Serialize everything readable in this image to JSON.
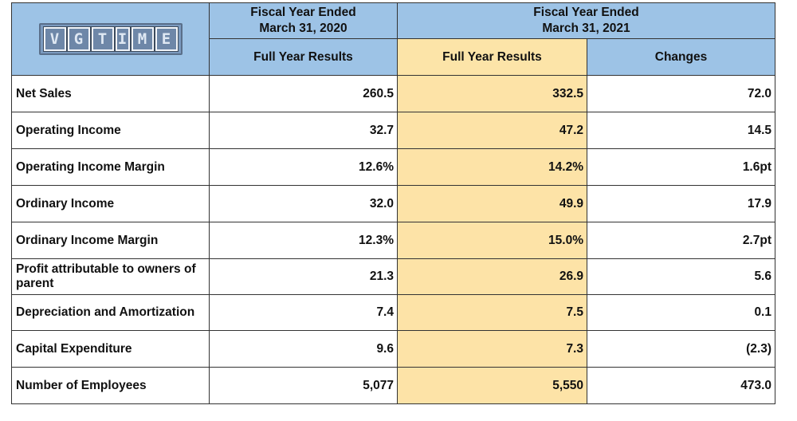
{
  "logo": {
    "letters": [
      "V",
      "G",
      "T",
      "I",
      "M",
      "E"
    ],
    "alt_text": "VGTIME"
  },
  "header": {
    "fy2020": "Fiscal Year Ended March 31, 2020",
    "fy2021": "Fiscal Year Ended March 31, 2021",
    "col_full_2020": "Full Year Results",
    "col_full_2021": "Full Year Results",
    "col_changes": "Changes"
  },
  "rows": [
    {
      "label": "Net Sales",
      "fy2020": "260.5",
      "fy2021": "332.5",
      "change": "72.0"
    },
    {
      "label": "Operating Income",
      "fy2020": "32.7",
      "fy2021": "47.2",
      "change": "14.5"
    },
    {
      "label": "Operating Income Margin",
      "fy2020": "12.6%",
      "fy2021": "14.2%",
      "change": "1.6pt"
    },
    {
      "label": "Ordinary Income",
      "fy2020": "32.0",
      "fy2021": "49.9",
      "change": "17.9"
    },
    {
      "label": "Ordinary Income Margin",
      "fy2020": "12.3%",
      "fy2021": "15.0%",
      "change": "2.7pt"
    },
    {
      "label": "Profit attributable to owners of parent",
      "fy2020": "21.3",
      "fy2021": "26.9",
      "change": "5.6"
    },
    {
      "label": "Depreciation and Amortization",
      "fy2020": "7.4",
      "fy2021": "7.5",
      "change": "0.1"
    },
    {
      "label": "Capital Expenditure",
      "fy2020": "9.6",
      "fy2021": "7.3",
      "change": "(2.3)"
    },
    {
      "label": "Number of Employees",
      "fy2020": "5,077",
      "fy2021": "5,550",
      "change": "473.0"
    }
  ],
  "colors": {
    "header_blue": "#9dc3e6",
    "highlight_yellow": "#fde3a7"
  }
}
